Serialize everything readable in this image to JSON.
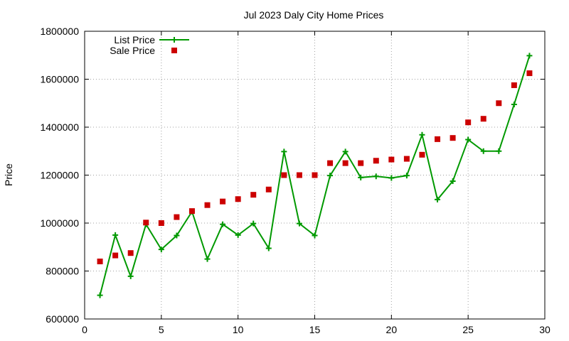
{
  "chart_data": {
    "type": "line",
    "title": "Jul 2023 Daly City Home Prices",
    "xlabel": "",
    "ylabel": "Price",
    "xlim": [
      0,
      30
    ],
    "ylim": [
      600000,
      1800000
    ],
    "xticks": [
      0,
      5,
      10,
      15,
      20,
      25,
      30
    ],
    "yticks": [
      600000,
      800000,
      1000000,
      1200000,
      1400000,
      1600000,
      1800000
    ],
    "grid": true,
    "legend_position": "top-left",
    "series": [
      {
        "name": "List Price",
        "style": "line-with-plus-markers",
        "color": "#009900",
        "x": [
          1,
          2,
          3,
          4,
          5,
          6,
          7,
          8,
          9,
          10,
          11,
          12,
          13,
          14,
          15,
          16,
          17,
          18,
          19,
          20,
          21,
          22,
          23,
          24,
          25,
          26,
          27,
          28,
          29
        ],
        "y": [
          699000,
          950000,
          778000,
          995000,
          890000,
          948000,
          1048000,
          850000,
          995000,
          950000,
          998000,
          895000,
          1298000,
          998000,
          948000,
          1198000,
          1298000,
          1190000,
          1195000,
          1188000,
          1198000,
          1368000,
          1098000,
          1175000,
          1348000,
          1300000,
          1300000,
          1495000,
          1698000
        ]
      },
      {
        "name": "Sale Price",
        "style": "square-markers",
        "color": "#cc0000",
        "x": [
          1,
          2,
          3,
          4,
          5,
          6,
          7,
          8,
          9,
          10,
          11,
          12,
          13,
          14,
          15,
          16,
          17,
          18,
          19,
          20,
          21,
          22,
          23,
          24,
          25,
          26,
          27,
          28,
          29
        ],
        "y": [
          840000,
          865000,
          875000,
          1002000,
          1000000,
          1025000,
          1050000,
          1075000,
          1090000,
          1100000,
          1118000,
          1140000,
          1200000,
          1200000,
          1200000,
          1250000,
          1250000,
          1250000,
          1260000,
          1265000,
          1268000,
          1285000,
          1350000,
          1355000,
          1420000,
          1435000,
          1500000,
          1575000,
          1625000
        ]
      }
    ]
  }
}
